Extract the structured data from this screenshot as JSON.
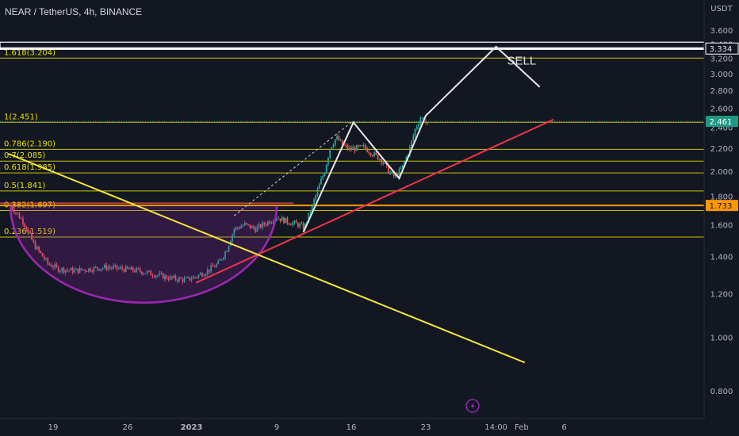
{
  "header": {
    "title": "NEAR / TetherUS, 4h, BINANCE"
  },
  "colors": {
    "background": "#131722",
    "up": "#26a69a",
    "down": "#ef5350",
    "fib": "#e8e200",
    "trend_up": "#f23645",
    "trend_down": "#f5e537",
    "zigzag": "#e8e8e8",
    "cup": "#9c27b0",
    "resistance": "#ffffff",
    "price_badge": "#1f9985",
    "level_badge": "#ff9800"
  },
  "icons": {
    "event_marker": "lightning-icon"
  },
  "chart_data": {
    "type": "line",
    "y_unit": "USDT",
    "y_scale": "log",
    "ylim": [
      0.72,
      3.9
    ],
    "y_ticks": [
      "3.600",
      "3.400",
      "3.200",
      "3.000",
      "2.800",
      "2.600",
      "2.400",
      "2.200",
      "2.000",
      "1.800",
      "1.600",
      "1.400",
      "1.200",
      "1.000",
      "0.800"
    ],
    "y_tick_values": [
      3.6,
      3.4,
      3.2,
      3.0,
      2.8,
      2.6,
      2.4,
      2.2,
      2.0,
      1.8,
      1.6,
      1.4,
      1.2,
      1.0,
      0.8
    ],
    "x_range_days": [
      15.0,
      39.0
    ],
    "x_ticks": [
      {
        "label": "19",
        "day": 19
      },
      {
        "label": "26",
        "day": 26
      },
      {
        "label": "2023",
        "day": 32
      },
      {
        "label": "9",
        "day": 40
      },
      {
        "label": "16",
        "day": 47
      },
      {
        "label": "23",
        "day": 54
      },
      {
        "label": "14:00",
        "day": 60.6
      },
      {
        "label": "Feb",
        "day": 63
      },
      {
        "label": "6",
        "day": 67
      }
    ],
    "fib_levels": [
      {
        "label": "1.618(3.204)",
        "value": 3.204
      },
      {
        "label": "1(2.451)",
        "value": 2.451
      },
      {
        "label": "0.786(2.190)",
        "value": 2.19
      },
      {
        "label": "0.7(2.085)",
        "value": 2.085
      },
      {
        "label": "0.618(1.985)",
        "value": 1.985
      },
      {
        "label": "0.5(1.841)",
        "value": 1.841
      },
      {
        "label": "0.382(1.697)",
        "value": 1.697
      },
      {
        "label": "0.236(1.519)",
        "value": 1.519
      }
    ],
    "resistance": {
      "label": "3.334",
      "value": 3.334
    },
    "current_price": {
      "label": "2.461",
      "value": 2.461
    },
    "marked_level": {
      "label": "1.733",
      "value": 1.733
    },
    "annotation": {
      "text": "SELL",
      "day": 63.0,
      "value": 3.12
    },
    "price_path": [
      [
        15.0,
        1.73
      ],
      [
        16.2,
        1.62
      ],
      [
        17.2,
        1.47
      ],
      [
        18.5,
        1.36
      ],
      [
        19.5,
        1.33
      ],
      [
        21.0,
        1.32
      ],
      [
        22.5,
        1.33
      ],
      [
        24.0,
        1.34
      ],
      [
        25.5,
        1.33
      ],
      [
        27.0,
        1.32
      ],
      [
        28.5,
        1.3
      ],
      [
        30.0,
        1.28
      ],
      [
        31.5,
        1.27
      ],
      [
        32.5,
        1.29
      ],
      [
        33.5,
        1.32
      ],
      [
        34.5,
        1.36
      ],
      [
        35.3,
        1.44
      ],
      [
        36.0,
        1.57
      ],
      [
        37.0,
        1.6
      ],
      [
        38.0,
        1.57
      ],
      [
        39.0,
        1.61
      ],
      [
        40.0,
        1.65
      ],
      [
        41.0,
        1.62
      ],
      [
        42.0,
        1.6
      ],
      [
        42.6,
        1.58
      ],
      [
        43.2,
        1.7
      ],
      [
        43.9,
        1.86
      ],
      [
        44.5,
        2.0
      ],
      [
        45.0,
        2.2
      ],
      [
        45.6,
        2.3
      ],
      [
        46.2,
        2.23
      ],
      [
        46.8,
        2.19
      ],
      [
        47.5,
        2.2
      ],
      [
        48.2,
        2.21
      ],
      [
        49.0,
        2.15
      ],
      [
        49.8,
        2.1
      ],
      [
        50.5,
        2.0
      ],
      [
        51.1,
        1.95
      ],
      [
        51.8,
        2.03
      ],
      [
        52.5,
        2.2
      ],
      [
        53.0,
        2.38
      ],
      [
        53.5,
        2.5
      ],
      [
        53.8,
        2.48
      ],
      [
        54.2,
        2.42
      ]
    ],
    "zigzag": [
      [
        42.5,
        1.55
      ],
      [
        47.2,
        2.45
      ],
      [
        51.5,
        1.94
      ],
      [
        54.0,
        2.52
      ],
      [
        60.6,
        3.36
      ],
      [
        64.7,
        2.84
      ]
    ],
    "trend_up": [
      [
        32.4,
        1.255
      ],
      [
        66.0,
        2.48
      ]
    ],
    "trend_down": [
      [
        14.8,
        2.15
      ],
      [
        63.3,
        0.9
      ]
    ],
    "dashed_projection": [
      [
        36.0,
        1.66
      ],
      [
        47.0,
        2.45
      ]
    ],
    "cup_arc": {
      "start_day": 15.0,
      "center_day": 28.0,
      "end_day": 40.0,
      "lip_value": 1.73,
      "bottom_value": 1.155
    }
  }
}
